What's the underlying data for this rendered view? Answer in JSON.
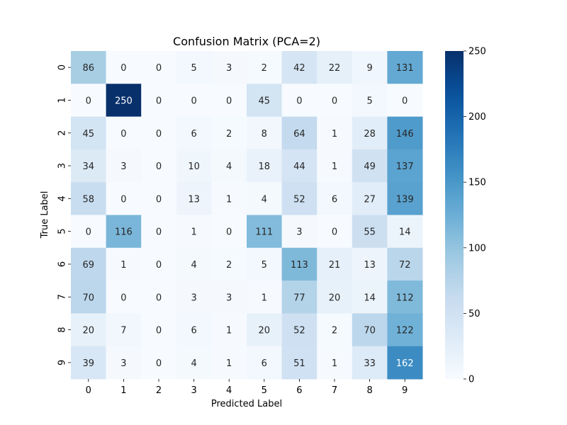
{
  "chart_data": {
    "type": "heatmap",
    "title": "Confusion Matrix (PCA=2)",
    "xlabel": "Predicted Label",
    "ylabel": "True Label",
    "x_categories": [
      "0",
      "1",
      "2",
      "3",
      "4",
      "5",
      "6",
      "7",
      "8",
      "9"
    ],
    "y_categories": [
      "0",
      "1",
      "2",
      "3",
      "4",
      "5",
      "6",
      "7",
      "8",
      "9"
    ],
    "values": [
      [
        86,
        0,
        0,
        5,
        3,
        2,
        42,
        22,
        9,
        131
      ],
      [
        0,
        250,
        0,
        0,
        0,
        45,
        0,
        0,
        5,
        0
      ],
      [
        45,
        0,
        0,
        6,
        2,
        8,
        64,
        1,
        28,
        146
      ],
      [
        34,
        3,
        0,
        10,
        4,
        18,
        44,
        1,
        49,
        137
      ],
      [
        58,
        0,
        0,
        13,
        1,
        4,
        52,
        6,
        27,
        139
      ],
      [
        0,
        116,
        0,
        1,
        0,
        111,
        3,
        0,
        55,
        14
      ],
      [
        69,
        1,
        0,
        4,
        2,
        5,
        113,
        21,
        13,
        72
      ],
      [
        70,
        0,
        0,
        3,
        3,
        1,
        77,
        20,
        14,
        112
      ],
      [
        20,
        7,
        0,
        6,
        1,
        20,
        52,
        2,
        70,
        122
      ],
      [
        39,
        3,
        0,
        4,
        1,
        6,
        51,
        1,
        33,
        162
      ]
    ],
    "colormap": "Blues",
    "vmin": 0,
    "vmax": 250,
    "colorbar_ticks": [
      0,
      50,
      100,
      150,
      200,
      250
    ],
    "annotated": true,
    "grid": false
  }
}
